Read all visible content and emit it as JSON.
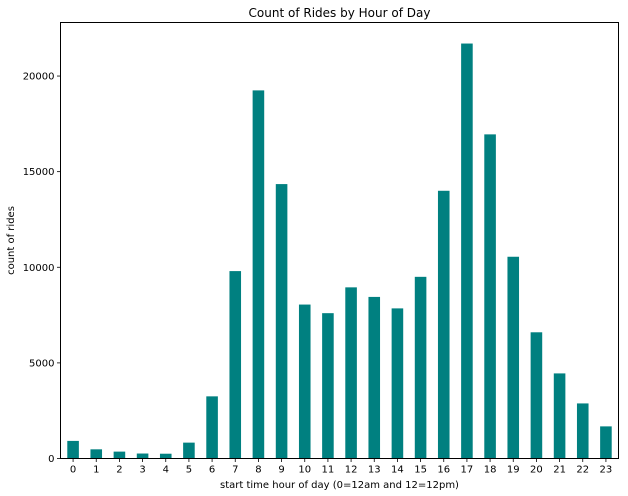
{
  "chart_data": {
    "type": "bar",
    "title": "Count of Rides by Hour of Day",
    "xlabel": "start time hour of day (0=12am and 12=12pm)",
    "ylabel": "count of rides",
    "categories": [
      "0",
      "1",
      "2",
      "3",
      "4",
      "5",
      "6",
      "7",
      "8",
      "9",
      "10",
      "11",
      "12",
      "13",
      "14",
      "15",
      "16",
      "17",
      "18",
      "19",
      "20",
      "21",
      "22",
      "23"
    ],
    "values": [
      920,
      480,
      360,
      260,
      250,
      830,
      3250,
      9800,
      19250,
      14350,
      8050,
      7600,
      8950,
      8450,
      7850,
      9500,
      14000,
      21700,
      16950,
      10550,
      6600,
      4450,
      2880,
      1680
    ],
    "ylim": [
      0,
      22800
    ],
    "yticks": [
      0,
      5000,
      10000,
      15000,
      20000
    ],
    "ytick_labels": [
      "0",
      "5000",
      "10000",
      "15000",
      "20000"
    ],
    "bar_color": "#008080",
    "grid": false,
    "legend": "none"
  }
}
